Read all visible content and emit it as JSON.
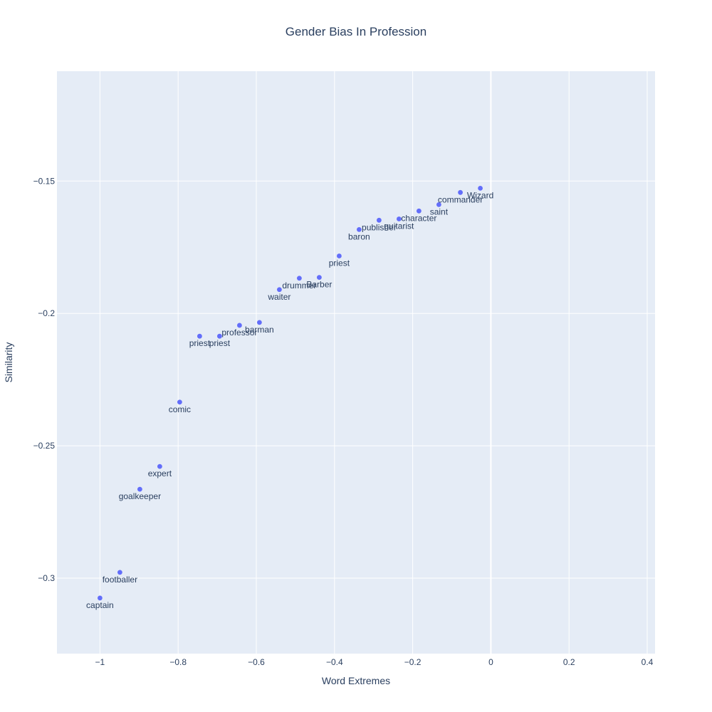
{
  "chart_data": {
    "type": "scatter",
    "title": "Gender Bias In Profession",
    "xlabel": "Word Extremes",
    "ylabel": "Similarity",
    "xlim": [
      -1.11,
      0.42
    ],
    "ylim": [
      -0.3285,
      -0.1085
    ],
    "xticks": [
      -1,
      -0.8,
      -0.6,
      -0.4,
      -0.2,
      0,
      0.2,
      0.4
    ],
    "xtick_labels": [
      "−1",
      "−0.8",
      "−0.6",
      "−0.4",
      "−0.2",
      "0",
      "0.2",
      "0.4"
    ],
    "yticks": [
      -0.15,
      -0.2,
      -0.25,
      -0.3
    ],
    "ytick_labels": [
      "−0.15",
      "−0.2",
      "−0.25",
      "−0.3"
    ],
    "grid": true,
    "marker_color": "#636efa",
    "plot_bg": "#e5ecf6",
    "points": [
      {
        "x": -1.0,
        "y": -0.3075,
        "label": "captain"
      },
      {
        "x": -0.949,
        "y": -0.2978,
        "label": "footballer"
      },
      {
        "x": -0.898,
        "y": -0.2664,
        "label": "goalkeeper"
      },
      {
        "x": -0.847,
        "y": -0.2578,
        "label": "expert"
      },
      {
        "x": -0.796,
        "y": -0.2335,
        "label": "comic"
      },
      {
        "x": -0.745,
        "y": -0.2086,
        "label": "priest"
      },
      {
        "x": -0.694,
        "y": -0.2086,
        "label": "priest"
      },
      {
        "x": -0.643,
        "y": -0.2045,
        "label": "professor"
      },
      {
        "x": -0.592,
        "y": -0.2034,
        "label": "barman"
      },
      {
        "x": -0.541,
        "y": -0.191,
        "label": "waiter"
      },
      {
        "x": -0.49,
        "y": -0.1867,
        "label": "drummer"
      },
      {
        "x": -0.439,
        "y": -0.1864,
        "label": "Barber"
      },
      {
        "x": -0.388,
        "y": -0.1783,
        "label": "priest"
      },
      {
        "x": -0.337,
        "y": -0.1683,
        "label": "baron"
      },
      {
        "x": -0.286,
        "y": -0.1648,
        "label": "publisher"
      },
      {
        "x": -0.235,
        "y": -0.1643,
        "label": "guitarist"
      },
      {
        "x": -0.184,
        "y": -0.1613,
        "label": "character"
      },
      {
        "x": -0.133,
        "y": -0.1589,
        "label": "saint"
      },
      {
        "x": -0.078,
        "y": -0.1543,
        "label": "commander"
      },
      {
        "x": -0.027,
        "y": -0.1527,
        "label": "Wizard"
      }
    ]
  }
}
